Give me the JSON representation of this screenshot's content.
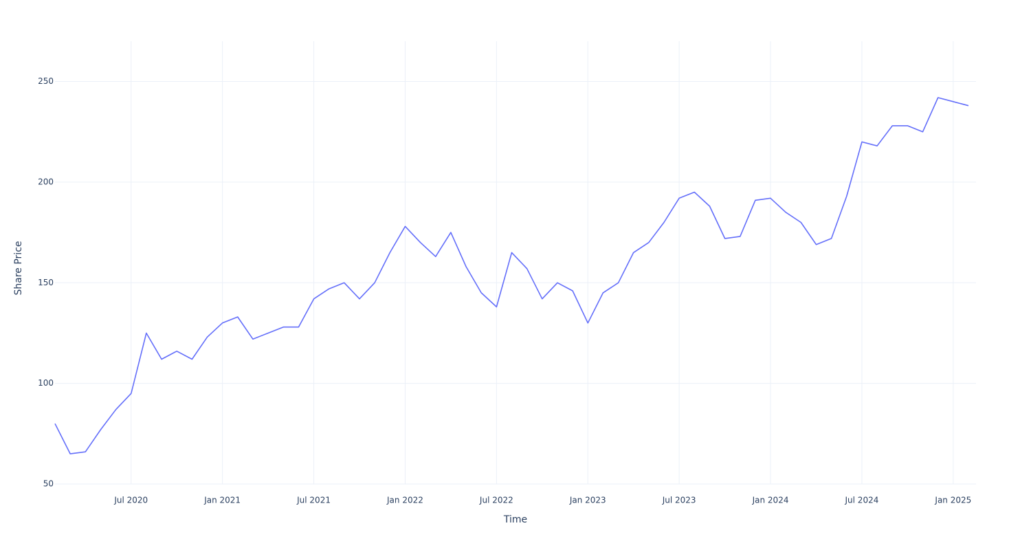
{
  "chart_data": {
    "type": "line",
    "x_label": "Time",
    "y_label": "Share Price",
    "x": [
      "2020-02",
      "2020-03",
      "2020-04",
      "2020-05",
      "2020-06",
      "2020-07",
      "2020-08",
      "2020-09",
      "2020-10",
      "2020-11",
      "2020-12",
      "2021-01",
      "2021-02",
      "2021-03",
      "2021-04",
      "2021-05",
      "2021-06",
      "2021-07",
      "2021-08",
      "2021-09",
      "2021-10",
      "2021-11",
      "2021-12",
      "2022-01",
      "2022-02",
      "2022-03",
      "2022-04",
      "2022-05",
      "2022-06",
      "2022-07",
      "2022-08",
      "2022-09",
      "2022-10",
      "2022-11",
      "2022-12",
      "2023-01",
      "2023-02",
      "2023-03",
      "2023-04",
      "2023-05",
      "2023-06",
      "2023-07",
      "2023-08",
      "2023-09",
      "2023-10",
      "2023-11",
      "2023-12",
      "2024-01",
      "2024-02",
      "2024-03",
      "2024-04",
      "2024-05",
      "2024-06",
      "2024-07",
      "2024-08",
      "2024-09",
      "2024-10",
      "2024-11",
      "2024-12",
      "2025-01",
      "2025-02"
    ],
    "series": [
      {
        "color": "#636efa",
        "values": [
          80,
          65,
          66,
          77,
          87,
          95,
          125,
          112,
          116,
          112,
          123,
          130,
          133,
          122,
          125,
          128,
          128,
          142,
          147,
          150,
          142,
          150,
          165,
          178,
          170,
          163,
          175,
          158,
          145,
          138,
          165,
          157,
          142,
          150,
          146,
          130,
          145,
          150,
          165,
          170,
          180,
          192,
          195,
          188,
          172,
          173,
          191,
          192,
          185,
          180,
          169,
          172,
          193,
          220,
          218,
          228,
          228,
          225,
          242,
          240,
          238
        ]
      }
    ],
    "xlim": [
      "2020-02",
      "2025-02"
    ],
    "xticks": [
      {
        "value": "2020-07",
        "label": "Jul 2020"
      },
      {
        "value": "2021-01",
        "label": "Jan 2021"
      },
      {
        "value": "2021-07",
        "label": "Jul 2021"
      },
      {
        "value": "2022-01",
        "label": "Jan 2022"
      },
      {
        "value": "2022-07",
        "label": "Jul 2022"
      },
      {
        "value": "2023-01",
        "label": "Jan 2023"
      },
      {
        "value": "2023-07",
        "label": "Jul 2023"
      },
      {
        "value": "2024-01",
        "label": "Jan 2024"
      },
      {
        "value": "2024-07",
        "label": "Jul 2024"
      },
      {
        "value": "2025-01",
        "label": "Jan 2025"
      }
    ],
    "ylim": [
      50,
      270
    ],
    "yticks": [
      50,
      100,
      150,
      200,
      250
    ],
    "grid": true
  }
}
